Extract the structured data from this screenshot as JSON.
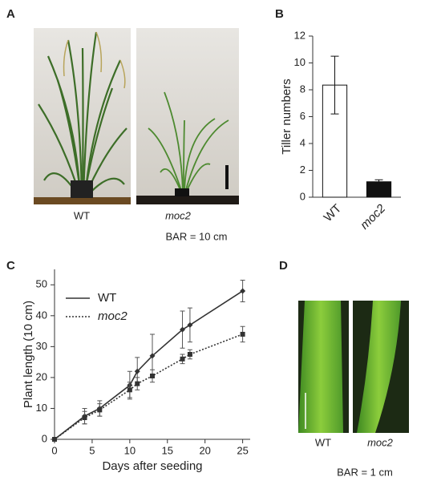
{
  "figure": {
    "panel_labels": [
      "A",
      "B",
      "C",
      "D"
    ],
    "panel_a": {
      "labels": [
        "WT",
        "moc2"
      ],
      "scale_note": "BAR = 10 cm"
    },
    "panel_d": {
      "labels": [
        "WT",
        "moc2"
      ],
      "scale_note": "BAR = 1 cm"
    }
  },
  "chart_data": [
    {
      "type": "bar",
      "categories": [
        "WT",
        "moc2"
      ],
      "values": [
        8.35,
        1.15
      ],
      "errors": [
        2.15,
        0.15
      ],
      "colors": [
        "#ffffff",
        "#111111"
      ],
      "ylabel": "Tiller numbers",
      "ylim": [
        0,
        12
      ],
      "yticks": [
        0,
        2,
        4,
        6,
        8,
        10,
        12
      ]
    },
    {
      "type": "line",
      "x": [
        0,
        4,
        6,
        10,
        11,
        13,
        17,
        18,
        25
      ],
      "series": [
        {
          "name": "WT",
          "color": "#333333",
          "dash": "solid",
          "marker": "diamond",
          "values": [
            0,
            7.5,
            10,
            17.5,
            22,
            27,
            35.5,
            37,
            48
          ],
          "errors": [
            0,
            2.5,
            2.5,
            4.5,
            4.5,
            7,
            6,
            5.5,
            3.5
          ]
        },
        {
          "name": "moc2",
          "color": "#333333",
          "dash": "dotted",
          "marker": "square",
          "values": [
            0,
            7,
            9.5,
            16,
            18,
            20.5,
            26,
            27.5,
            34
          ],
          "errors": [
            0,
            2,
            2,
            2.5,
            2,
            2,
            1.5,
            1.5,
            2.5
          ]
        }
      ],
      "xlabel": "Days after seeding",
      "ylabel": "Plant length (10 cm)",
      "xlim": [
        0,
        26
      ],
      "xticks": [
        0,
        5,
        10,
        15,
        20,
        25
      ],
      "ylim": [
        0,
        55
      ],
      "yticks": [
        0,
        10,
        20,
        30,
        40,
        50
      ],
      "legend": "upper-left"
    }
  ]
}
